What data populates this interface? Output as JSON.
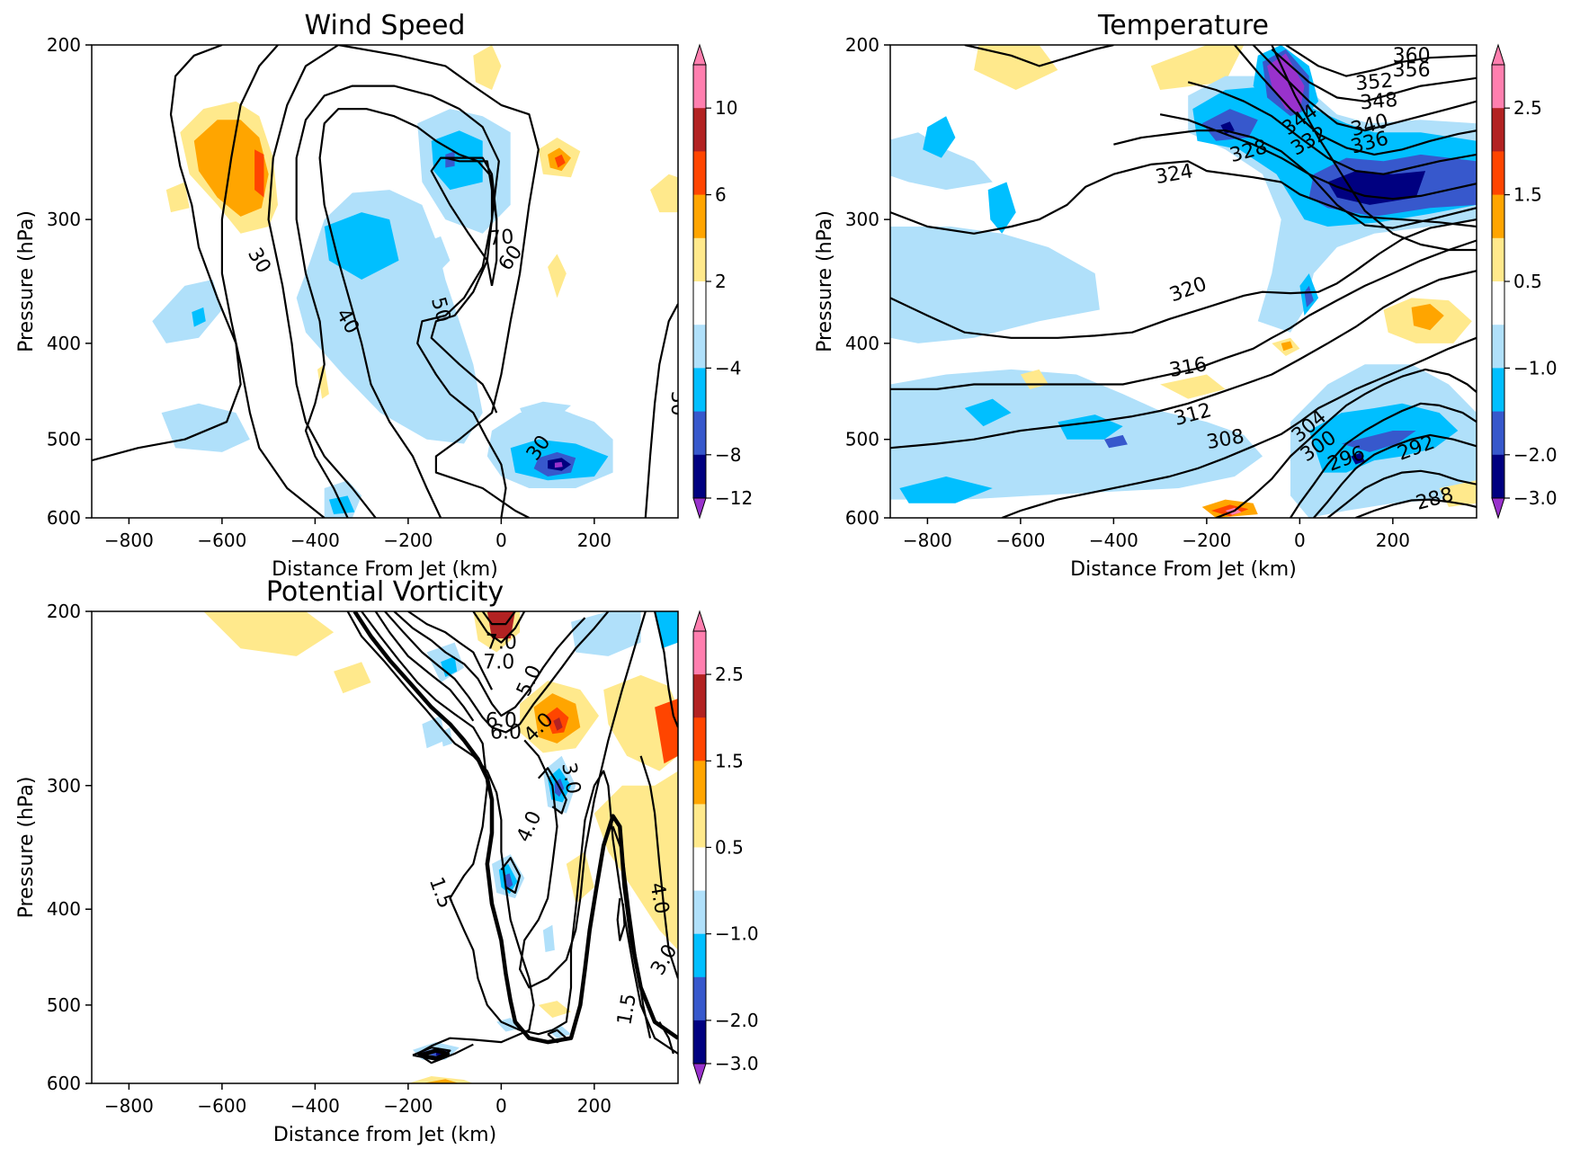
{
  "figure": {
    "colors": [
      "#9932cc",
      "#000080",
      "#3758cc",
      "#00bfff",
      "#b0e0fa",
      "#ffffff",
      "#ffe98c",
      "#ffa500",
      "#ff4500",
      "#b22222",
      "#ff7faf"
    ]
  },
  "chart_data": [
    {
      "type": "heatmap",
      "title": "Wind Speed",
      "xlabel": "Distance From Jet (km)",
      "ylabel": "Pressure (hPa)",
      "xlim": [
        -880,
        380
      ],
      "ylim": [
        600,
        200
      ],
      "y_scale": "log",
      "xticks": [
        "−800",
        "−600",
        "−400",
        "−200",
        "0",
        "200"
      ],
      "yticks": [
        "200",
        "300",
        "400",
        "500",
        "600"
      ],
      "colorbar": {
        "levels": [
          -12,
          -10,
          -8,
          -6,
          -4,
          -1,
          2,
          4,
          6,
          8,
          10,
          12
        ],
        "tick_labels": [
          "10",
          "6",
          "2",
          "−4",
          "−8",
          "−12"
        ],
        "extend": "both"
      },
      "contour_labels": [
        "30",
        "40",
        "50",
        "60",
        "70",
        "30",
        "30"
      ],
      "shaded_features": [
        {
          "level": "4 to 6",
          "center": [
            -550,
            262
          ]
        },
        {
          "level": "6 to 8",
          "center": [
            -520,
            265
          ]
        },
        {
          "level": "−6 to −4",
          "center": [
            120,
            530
          ]
        },
        {
          "level": "−10 to −8",
          "center": [
            120,
            535
          ]
        },
        {
          "level": "−6 to −4",
          "center": [
            -120,
            250
          ]
        },
        {
          "level": "4 to 6",
          "center": [
            130,
            260
          ]
        }
      ]
    },
    {
      "type": "heatmap",
      "title": "Temperature",
      "xlabel": "Distance From Jet (km)",
      "ylabel": "Pressure (hPa)",
      "xlim": [
        -880,
        380
      ],
      "ylim": [
        600,
        200
      ],
      "y_scale": "log",
      "xticks": [
        "−800",
        "−600",
        "−400",
        "−200",
        "0",
        "200"
      ],
      "yticks": [
        "200",
        "300",
        "400",
        "500",
        "600"
      ],
      "colorbar": {
        "levels": [
          -3.0,
          -2.5,
          -2.0,
          -1.5,
          -1.0,
          -0.5,
          0.5,
          1.0,
          1.5,
          2.0,
          2.5,
          3.0
        ],
        "tick_labels": [
          "2.5",
          "1.5",
          "0.5",
          "−1.0",
          "−2.0",
          "−3.0"
        ],
        "extend": "both"
      },
      "contour_labels": [
        "360",
        "356",
        "352",
        "348",
        "344",
        "340",
        "336",
        "332",
        "328",
        "324",
        "320",
        "316",
        "312",
        "308",
        "304",
        "300",
        "296",
        "292",
        "288"
      ],
      "shaded_features": [
        {
          "level": "−3.0 to −2.5",
          "center": [
            -80,
            210
          ]
        },
        {
          "level": "−2.5 to −2.0",
          "center": [
            130,
            280
          ]
        },
        {
          "level": "2.5 to 3.0",
          "center": [
            -130,
            585
          ]
        },
        {
          "level": "1.0 to 1.5",
          "center": [
            260,
            380
          ]
        }
      ]
    },
    {
      "type": "heatmap",
      "title": "Potential Vorticity",
      "xlabel": "Distance from Jet (km)",
      "ylabel": "Pressure (hPa)",
      "xlim": [
        -880,
        380
      ],
      "ylim": [
        600,
        200
      ],
      "y_scale": "log",
      "xticks": [
        "−800",
        "−600",
        "−400",
        "−200",
        "0",
        "200"
      ],
      "yticks": [
        "200",
        "300",
        "400",
        "500",
        "600"
      ],
      "colorbar": {
        "levels": [
          -3.0,
          -2.5,
          -2.0,
          -1.5,
          -1.0,
          -0.5,
          0.5,
          1.0,
          1.5,
          2.0,
          2.5,
          3.0
        ],
        "tick_labels": [
          "2.5",
          "1.5",
          "0.5",
          "−1.0",
          "−2.0",
          "−3.0"
        ],
        "extend": "both"
      },
      "contour_labels": [
        "6.0",
        "7.0",
        "7.0",
        "6.0",
        "5.0",
        "4.0",
        "3.0",
        "4.0",
        "1.5",
        "4.0",
        "3.0",
        "1.5"
      ],
      "shaded_features": [
        {
          "level": "1.5 to 2.0",
          "center": [
            120,
            255
          ]
        },
        {
          "level": "2.5 to 3.0",
          "center": [
            0,
            205
          ]
        },
        {
          "level": "−2.0 to −1.5",
          "center": [
            120,
            300
          ]
        },
        {
          "level": "−2.0 to −1.5",
          "center": [
            10,
            375
          ]
        },
        {
          "level": "−2.5 to −2.0",
          "center": [
            -130,
            560
          ]
        }
      ]
    }
  ]
}
